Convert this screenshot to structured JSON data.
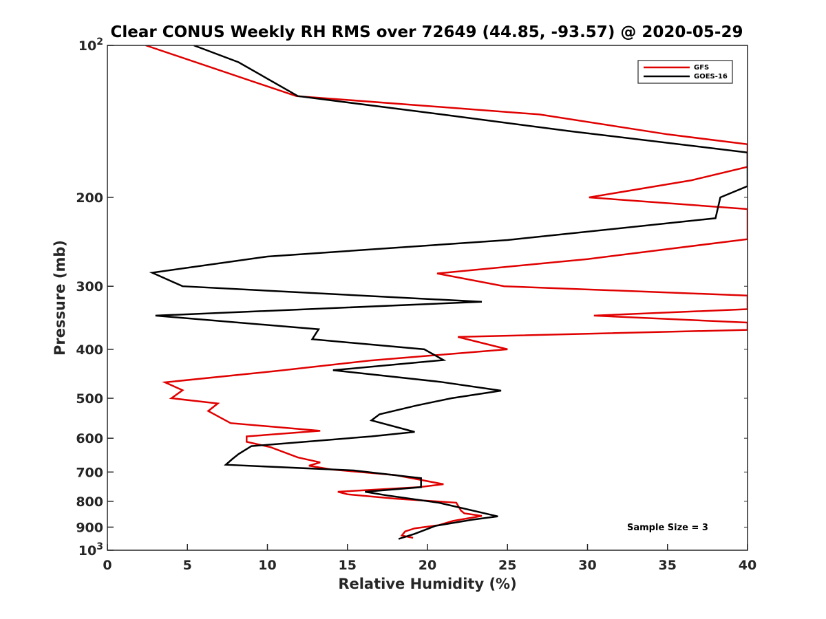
{
  "chart_data": {
    "type": "line",
    "title": "Clear CONUS Weekly RH RMS over 72649 (44.85, -93.57) @ 2020-05-29",
    "xlabel": "Relative Humidity (%)",
    "ylabel": "Pressure (mb)",
    "xlim": [
      0,
      40
    ],
    "ylim": [
      100,
      1000
    ],
    "y_scale": "log",
    "y_reversed": true,
    "grid": false,
    "legend_position": "top-right",
    "x_ticks": [
      "0",
      "5",
      "10",
      "15",
      "20",
      "25",
      "30",
      "35",
      "40"
    ],
    "y_ticks": [
      {
        "value": 100,
        "base": "10",
        "exp": "2"
      },
      {
        "value": 200,
        "label": "200"
      },
      {
        "value": 300,
        "label": "300"
      },
      {
        "value": 400,
        "label": "400"
      },
      {
        "value": 500,
        "label": "500"
      },
      {
        "value": 600,
        "label": "600"
      },
      {
        "value": 700,
        "label": "700"
      },
      {
        "value": 800,
        "label": "800"
      },
      {
        "value": 900,
        "label": "900"
      },
      {
        "value": 1000,
        "base": "10",
        "exp": "3"
      }
    ],
    "annotation": "Sample Size = 3",
    "series": [
      {
        "name": "GFS",
        "color": "#e00000",
        "points": [
          [
            2.4,
            100
          ],
          [
            11.8,
            126
          ],
          [
            27,
            137
          ],
          [
            35,
            150
          ],
          [
            40,
            157
          ],
          [
            40,
            174
          ],
          [
            36.5,
            185
          ],
          [
            30.1,
            200
          ],
          [
            40,
            211
          ],
          [
            40,
            242
          ],
          [
            30,
            265
          ],
          [
            20.6,
            283
          ],
          [
            24.8,
            300
          ],
          [
            40,
            313
          ],
          [
            40,
            333
          ],
          [
            30.4,
            343
          ],
          [
            40,
            354
          ],
          [
            40,
            366
          ],
          [
            21.9,
            378
          ],
          [
            25,
            400
          ],
          [
            16.4,
            421
          ],
          [
            11,
            440
          ],
          [
            3.6,
            465
          ],
          [
            4.7,
            482
          ],
          [
            4,
            500
          ],
          [
            6.9,
            512
          ],
          [
            6.3,
            530
          ],
          [
            7.7,
            560
          ],
          [
            13.3,
            580
          ],
          [
            8.7,
            595
          ],
          [
            8.7,
            610
          ],
          [
            10.2,
            625
          ],
          [
            11.9,
            655
          ],
          [
            13.3,
            670
          ],
          [
            12.6,
            680
          ],
          [
            14,
            692
          ],
          [
            18,
            710
          ],
          [
            21,
            740
          ],
          [
            19.5,
            750
          ],
          [
            14.4,
            766
          ],
          [
            15,
            775
          ],
          [
            17.9,
            790
          ],
          [
            21.8,
            805
          ],
          [
            22.1,
            835
          ],
          [
            22.3,
            845
          ],
          [
            23.4,
            855
          ],
          [
            21.6,
            875
          ],
          [
            20.7,
            892
          ],
          [
            19.2,
            905
          ],
          [
            18.6,
            918
          ],
          [
            18.4,
            935
          ],
          [
            19.1,
            945
          ]
        ]
      },
      {
        "name": "GOES-16",
        "color": "#000000",
        "points": [
          [
            5.4,
            100
          ],
          [
            8.2,
            108
          ],
          [
            11.9,
            126
          ],
          [
            20.9,
            137
          ],
          [
            29,
            148
          ],
          [
            40,
            163
          ],
          [
            40,
            190
          ],
          [
            38.3,
            200
          ],
          [
            38,
            220
          ],
          [
            25,
            243
          ],
          [
            10,
            262
          ],
          [
            2.8,
            282
          ],
          [
            4.7,
            300
          ],
          [
            23.4,
            322
          ],
          [
            3,
            343
          ],
          [
            13.2,
            365
          ],
          [
            12.8,
            382
          ],
          [
            19.8,
            400
          ],
          [
            21,
            420
          ],
          [
            14.1,
            440
          ],
          [
            20.8,
            464
          ],
          [
            24.6,
            483
          ],
          [
            21.5,
            500
          ],
          [
            19.3,
            517
          ],
          [
            17,
            538
          ],
          [
            16.5,
            553
          ],
          [
            19.2,
            583
          ],
          [
            16.5,
            595
          ],
          [
            9,
            622
          ],
          [
            8.2,
            645
          ],
          [
            7.8,
            660
          ],
          [
            7.4,
            677
          ],
          [
            15.4,
            695
          ],
          [
            19.6,
            720
          ],
          [
            19.6,
            750
          ],
          [
            16.1,
            766
          ],
          [
            17.6,
            780
          ],
          [
            20.7,
            805
          ],
          [
            24.4,
            857
          ],
          [
            22.8,
            870
          ],
          [
            20.5,
            895
          ],
          [
            20.1,
            905
          ],
          [
            19.2,
            928
          ],
          [
            18.2,
            950
          ]
        ]
      }
    ]
  }
}
